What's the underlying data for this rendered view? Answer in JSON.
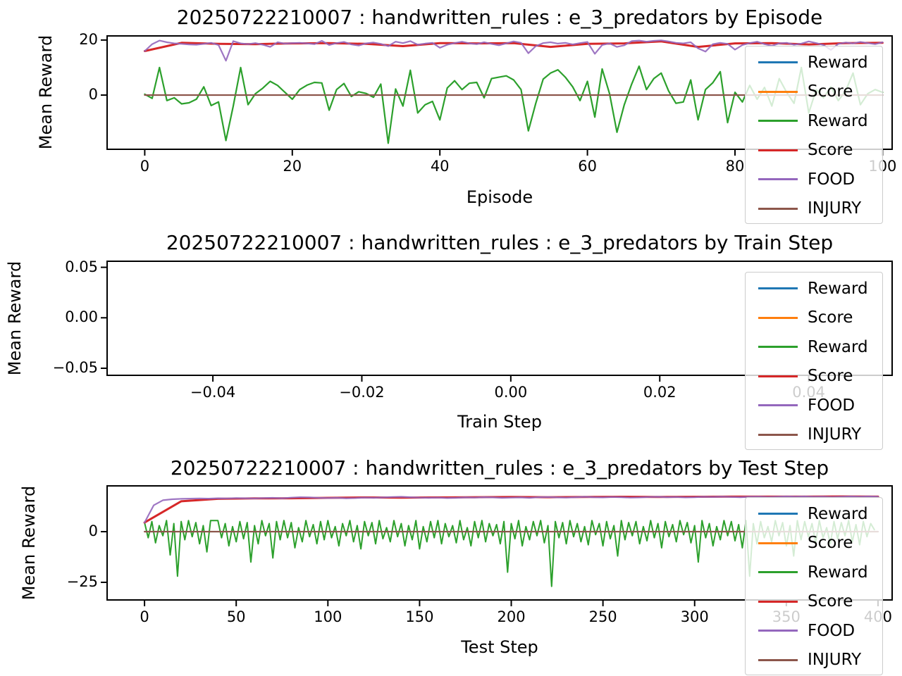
{
  "figure": {
    "background": "#ffffff",
    "text_color": "#000000",
    "spine_color": "#000000",
    "legend_bg": "rgba(255,255,255,0.8)",
    "legend_border": "#cccccc"
  },
  "chart_data": [
    {
      "type": "line",
      "title": "20250722210007 : handwritten_rules : e_3_predators by Episode",
      "xlabel": "Episode",
      "ylabel": "Mean Reward",
      "xlim": [
        -5.1,
        101.3
      ],
      "ylim": [
        -19.7,
        21.5
      ],
      "grid": false,
      "legend_position": "upper right",
      "xticks": [
        {
          "value": 0,
          "label": "0"
        },
        {
          "value": 20,
          "label": "20"
        },
        {
          "value": 40,
          "label": "40"
        },
        {
          "value": 60,
          "label": "60"
        },
        {
          "value": 80,
          "label": "80"
        },
        {
          "value": 100,
          "label": "100"
        }
      ],
      "yticks": [
        {
          "value": 0,
          "label": "0"
        },
        {
          "value": 20,
          "label": "20"
        }
      ],
      "legend": [
        {
          "label": "Reward",
          "color": "#1f77b4"
        },
        {
          "label": "Score",
          "color": "#ff7f0e"
        },
        {
          "label": "Reward",
          "color": "#2ca02c"
        },
        {
          "label": "Score",
          "color": "#d62728"
        },
        {
          "label": "FOOD",
          "color": "#9467bd"
        },
        {
          "label": "INJURY",
          "color": "#8c564b"
        }
      ],
      "series": [
        {
          "name": "Reward",
          "color": "#1f77b4",
          "x_range": [
            0,
            100
          ],
          "values": []
        },
        {
          "name": "Score",
          "color": "#ff7f0e",
          "x_range": [
            0,
            100
          ],
          "values": []
        },
        {
          "name": "Reward",
          "color": "#2ca02c",
          "x_range": [
            0,
            100
          ],
          "width": 2.2,
          "values": [
            0.3,
            -1.2,
            10.0,
            -2.0,
            -1.0,
            -3.2,
            -2.8,
            -1.5,
            3.0,
            -3.8,
            -2.5,
            -16.5,
            -4.0,
            10.0,
            -3.5,
            0.5,
            2.5,
            5.0,
            3.5,
            1.0,
            -1.5,
            2.0,
            3.6,
            4.6,
            4.4,
            -5.5,
            2.0,
            4.2,
            -0.5,
            1.2,
            0.6,
            -0.8,
            4.0,
            -17.5,
            2.2,
            -4.0,
            9.0,
            -6.5,
            -3.5,
            -2.3,
            -9.0,
            2.6,
            5.2,
            2.0,
            4.3,
            4.6,
            -1.0,
            6.0,
            6.5,
            7.0,
            5.5,
            2.0,
            -13.0,
            -3.0,
            5.8,
            8.0,
            9.2,
            6.5,
            3.0,
            -2.0,
            5.0,
            -8.0,
            9.5,
            0.5,
            -13.5,
            -3.5,
            4.0,
            10.5,
            2.0,
            6.0,
            8.0,
            1.5,
            -3.0,
            -2.5,
            5.5,
            -9.0,
            2.0,
            4.5,
            8.5,
            -10.0,
            1.0,
            -2.5,
            3.5,
            -1.5,
            2.8,
            -4.0,
            6.0,
            1.0,
            -3.0,
            10.0,
            -6.5,
            2.0,
            -1.0,
            3.0,
            -2.0,
            1.5,
            8.0,
            -3.5,
            0.5,
            2.0,
            1.0
          ]
        },
        {
          "name": "Score",
          "color": "#d62728",
          "x_range": [
            0,
            100
          ],
          "width": 3,
          "values": [
            16.0,
            19.0,
            18.6,
            18.5,
            18.8,
            18.9,
            18.6,
            17.8,
            18.9,
            18.8,
            18.9,
            17.5,
            18.6,
            18.8,
            19.5,
            17.5,
            18.8,
            18.9,
            18.4,
            18.9,
            19.0
          ]
        },
        {
          "name": "FOOD",
          "color": "#9467bd",
          "x_range": [
            0,
            100
          ],
          "width": 2.2,
          "opacity": 0.9,
          "values": [
            16.0,
            18.5,
            19.8,
            19.2,
            18.8,
            18.6,
            18.4,
            18.3,
            18.6,
            19.0,
            18.2,
            12.5,
            19.6,
            18.8,
            18.5,
            18.9,
            18.3,
            17.5,
            19.2,
            18.7,
            18.9,
            19.0,
            18.8,
            18.5,
            19.7,
            18.2,
            18.9,
            19.3,
            18.4,
            18.0,
            18.8,
            19.1,
            18.6,
            17.8,
            19.4,
            18.9,
            19.6,
            18.3,
            18.7,
            19.0,
            17.2,
            18.3,
            18.9,
            19.4,
            18.8,
            18.5,
            19.2,
            18.6,
            18.1,
            18.8,
            19.5,
            19.0,
            15.2,
            17.8,
            18.9,
            19.2,
            18.7,
            19.0,
            18.4,
            18.9,
            19.3,
            15.0,
            18.2,
            18.8,
            17.5,
            18.1,
            19.6,
            19.8,
            19.4,
            19.7,
            19.9,
            19.5,
            19.0,
            18.8,
            19.2,
            17.0,
            15.8,
            18.5,
            19.0,
            18.6,
            16.5,
            18.2,
            18.9,
            19.4,
            18.5,
            17.9,
            18.8,
            19.0,
            18.3,
            18.7,
            19.5,
            18.9,
            18.2,
            16.4,
            18.6,
            19.1,
            18.8,
            19.3,
            18.9,
            18.5,
            19.2
          ]
        },
        {
          "name": "INJURY",
          "color": "#8c564b",
          "x_range": [
            0,
            100
          ],
          "width": 2.2,
          "values": [
            0,
            0
          ]
        }
      ]
    },
    {
      "type": "line",
      "title": "20250722210007 : handwritten_rules : e_3_predators by Train Step",
      "xlabel": "Train Step",
      "ylabel": "Mean Reward",
      "xlim": [
        -0.0542,
        0.0512
      ],
      "ylim": [
        -0.057,
        0.056
      ],
      "grid": false,
      "legend_position": "upper right",
      "xticks": [
        {
          "value": -0.04,
          "label": "−0.04"
        },
        {
          "value": -0.02,
          "label": "−0.02"
        },
        {
          "value": 0.0,
          "label": "0.00"
        },
        {
          "value": 0.02,
          "label": "0.02"
        },
        {
          "value": 0.04,
          "label": "0.04"
        }
      ],
      "yticks": [
        {
          "value": 0.05,
          "label": "0.05"
        },
        {
          "value": 0.0,
          "label": "0.00"
        },
        {
          "value": -0.05,
          "label": "−0.05"
        }
      ],
      "legend": [
        {
          "label": "Reward",
          "color": "#1f77b4"
        },
        {
          "label": "Score",
          "color": "#ff7f0e"
        },
        {
          "label": "Reward",
          "color": "#2ca02c"
        },
        {
          "label": "Score",
          "color": "#d62728"
        },
        {
          "label": "FOOD",
          "color": "#9467bd"
        },
        {
          "label": "INJURY",
          "color": "#8c564b"
        }
      ],
      "series": [
        {
          "name": "Reward",
          "color": "#1f77b4",
          "values": []
        },
        {
          "name": "Score",
          "color": "#ff7f0e",
          "values": []
        },
        {
          "name": "Reward",
          "color": "#2ca02c",
          "values": []
        },
        {
          "name": "Score",
          "color": "#d62728",
          "values": []
        },
        {
          "name": "FOOD",
          "color": "#9467bd",
          "values": []
        },
        {
          "name": "INJURY",
          "color": "#8c564b",
          "values": []
        }
      ]
    },
    {
      "type": "line",
      "title": "20250722210007 : handwritten_rules : e_3_predators by Test Step",
      "xlabel": "Test Step",
      "ylabel": "Mean Reward",
      "xlim": [
        -20.4,
        407.7
      ],
      "ylim": [
        -33.7,
        22.6
      ],
      "grid": false,
      "legend_position": "upper right",
      "xticks": [
        {
          "value": 0,
          "label": "0"
        },
        {
          "value": 50,
          "label": "50"
        },
        {
          "value": 100,
          "label": "100"
        },
        {
          "value": 150,
          "label": "150"
        },
        {
          "value": 200,
          "label": "200"
        },
        {
          "value": 250,
          "label": "250"
        },
        {
          "value": 300,
          "label": "300"
        },
        {
          "value": 350,
          "label": "350"
        },
        {
          "value": 400,
          "label": "400"
        }
      ],
      "yticks": [
        {
          "value": 0,
          "label": "0"
        },
        {
          "value": -25,
          "label": "−25"
        }
      ],
      "legend": [
        {
          "label": "Reward",
          "color": "#1f77b4"
        },
        {
          "label": "Score",
          "color": "#ff7f0e"
        },
        {
          "label": "Reward",
          "color": "#2ca02c"
        },
        {
          "label": "Score",
          "color": "#d62728"
        },
        {
          "label": "FOOD",
          "color": "#9467bd"
        },
        {
          "label": "INJURY",
          "color": "#8c564b"
        }
      ],
      "series": [
        {
          "name": "Reward",
          "color": "#1f77b4",
          "x_range": [
            0,
            400
          ],
          "values": []
        },
        {
          "name": "Score",
          "color": "#ff7f0e",
          "x_range": [
            0,
            400
          ],
          "values": []
        },
        {
          "name": "Reward",
          "color": "#2ca02c",
          "x_range": [
            0,
            398
          ],
          "width": 2,
          "values": [
            4.5,
            -3,
            5,
            -5.5,
            3,
            -2,
            5.5,
            -11.5,
            4,
            -22,
            5,
            -4,
            5.5,
            -2.5,
            4.5,
            -6,
            3,
            -10,
            5.5,
            5.5,
            5.5,
            -3,
            4,
            -7,
            2.5,
            -5,
            5,
            -3.5,
            4.5,
            -15,
            3,
            -6,
            5.5,
            -2,
            4,
            -13,
            5,
            -4,
            5.5,
            -3,
            4.5,
            -8,
            2,
            -5,
            5.5,
            -2.5,
            3.5,
            -6,
            5,
            -4,
            5.5,
            -3,
            2.5,
            -7,
            4,
            -2,
            5.5,
            -5,
            3,
            -8.5,
            5,
            -2,
            4.5,
            -6,
            5.5,
            -3.5,
            2,
            -5,
            5.5,
            -2.5,
            4,
            -7,
            3,
            -4,
            5.5,
            -8.5,
            2.5,
            -5,
            5,
            -3,
            5.5,
            -6,
            4,
            -2.5,
            3,
            -5.5,
            5.5,
            -4,
            2,
            -7,
            5,
            -3,
            5.5,
            -5,
            4,
            -2,
            3.5,
            -6,
            5,
            -20,
            4,
            -3.5,
            5.5,
            -7,
            2.5,
            -4,
            5,
            -2,
            5.5,
            -5.5,
            3,
            -27,
            5,
            -3,
            4.5,
            -6,
            5.5,
            -2.5,
            4,
            -5,
            2.5,
            -6.5,
            5.5,
            -1.5,
            4,
            -7,
            5,
            -3.5,
            3,
            -12,
            5.5,
            -4,
            4.5,
            -2,
            5,
            -6,
            2.5,
            -4.5,
            5.5,
            -3,
            4,
            -8,
            5,
            -2.5,
            3.5,
            -5,
            5.5,
            -1.5,
            4.5,
            -5.5,
            3,
            -15,
            5.5,
            -3,
            4,
            -7,
            2.5,
            -4,
            5.5,
            -2,
            5,
            -4.5,
            3.5,
            -8,
            5.5,
            -22,
            4,
            -6,
            5,
            -3,
            2.5,
            -5,
            5.5,
            -2,
            4.5,
            -7,
            3,
            -12,
            5.5,
            -4,
            5,
            -2.5,
            4,
            -5.5,
            5.5,
            -3,
            2,
            -6,
            5,
            -3.5,
            4.5,
            -2,
            5.5,
            -5,
            3.5,
            -6.5,
            5,
            -2.5,
            4,
            1
          ]
        },
        {
          "name": "Score",
          "color": "#d62728",
          "x_range": [
            0,
            400
          ],
          "width": 3,
          "values": [
            4.5,
            15.0,
            16.2,
            16.4,
            16.5,
            16.7,
            16.9,
            16.8,
            16.9,
            17.0,
            17.1,
            17.0,
            17.1,
            17.2,
            17.1,
            17.2,
            17.3,
            17.3,
            17.3,
            17.4,
            17.3
          ]
        },
        {
          "name": "FOOD",
          "color": "#9467bd",
          "x_range": [
            0,
            400
          ],
          "width": 2.2,
          "opacity": 0.9,
          "values": [
            4.5,
            13.0,
            15.5,
            16.0,
            16.2,
            16.3,
            16.4,
            16.3,
            16.5,
            16.4,
            16.6,
            16.5,
            16.4,
            16.6,
            16.7,
            16.5,
            16.8,
            17.0,
            16.9,
            16.7,
            16.6,
            16.7,
            16.5,
            16.6,
            16.8,
            16.7,
            16.9,
            17.1,
            17.2,
            17.0,
            16.8,
            16.7,
            16.8,
            16.6,
            16.7,
            16.9,
            16.8,
            17.0,
            16.9,
            16.7,
            16.8,
            16.9,
            16.7,
            17.0,
            17.1,
            16.9,
            16.8,
            17.0,
            17.2,
            17.0,
            16.9,
            17.1,
            17.0,
            16.8,
            16.9,
            17.1,
            17.2,
            17.0,
            17.1,
            16.9,
            17.0,
            17.2,
            17.1,
            17.3,
            17.1,
            17.0,
            17.2,
            17.3,
            17.1,
            17.2,
            17.4,
            17.3,
            17.4,
            17.2,
            17.3,
            17.1,
            17.2,
            17.4,
            17.3,
            17.4,
            17.3
          ]
        },
        {
          "name": "INJURY",
          "color": "#8c564b",
          "x_range": [
            0,
            400
          ],
          "width": 2.2,
          "values": [
            0,
            0
          ]
        }
      ]
    }
  ]
}
